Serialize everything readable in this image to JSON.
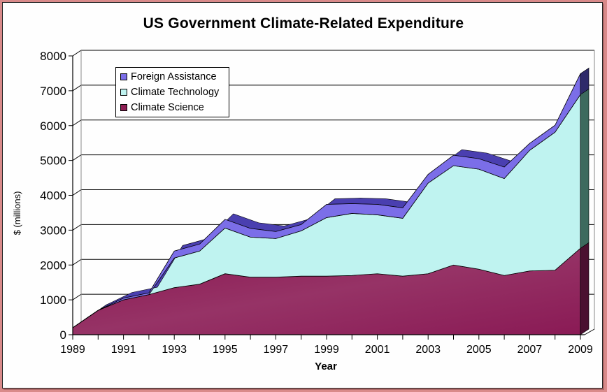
{
  "chart_data": {
    "type": "area",
    "stacked": true,
    "title": "US Government Climate-Related Expenditure",
    "xlabel": "Year",
    "ylabel": "$ (millions)",
    "ylim": [
      0,
      8000
    ],
    "yticks": [
      "0",
      "1000",
      "2000",
      "3000",
      "4000",
      "5000",
      "6000",
      "7000",
      "8000"
    ],
    "xticks": [
      "1989",
      "1991",
      "1993",
      "1995",
      "1997",
      "1999",
      "2001",
      "2003",
      "2005",
      "2007",
      "2009"
    ],
    "grid": true,
    "legend_position": "top-left",
    "x": [
      1989,
      1990,
      1991,
      1992,
      1993,
      1994,
      1995,
      1996,
      1997,
      1998,
      1999,
      2000,
      2001,
      2002,
      2003,
      2004,
      2005,
      2006,
      2007,
      2008,
      2009
    ],
    "series": [
      {
        "name": "Climate Science",
        "color": "#8e1f55",
        "values": [
          200,
          700,
          1000,
          1150,
          1350,
          1450,
          1750,
          1650,
          1650,
          1680,
          1680,
          1700,
          1750,
          1680,
          1750,
          2000,
          1880,
          1700,
          1830,
          1850,
          2480
        ]
      },
      {
        "name": "Climate Technology",
        "color": "#bff3f0",
        "values": [
          0,
          0,
          0,
          0,
          850,
          950,
          1310,
          1150,
          1110,
          1300,
          1680,
          1780,
          1690,
          1660,
          2600,
          2850,
          2870,
          2780,
          3460,
          3960,
          4410
        ]
      },
      {
        "name": "Foreign Assistance",
        "color": "#7b6ee8",
        "values": [
          0,
          0,
          50,
          50,
          200,
          200,
          250,
          250,
          200,
          180,
          380,
          280,
          300,
          300,
          250,
          300,
          300,
          330,
          200,
          200,
          600
        ]
      }
    ]
  },
  "legend": {
    "items": [
      {
        "label": "Foreign Assistance",
        "color": "#7b6ee8"
      },
      {
        "label": "Climate Technology",
        "color": "#bff3f0"
      },
      {
        "label": "Climate Science",
        "color": "#8e1f55"
      }
    ]
  }
}
